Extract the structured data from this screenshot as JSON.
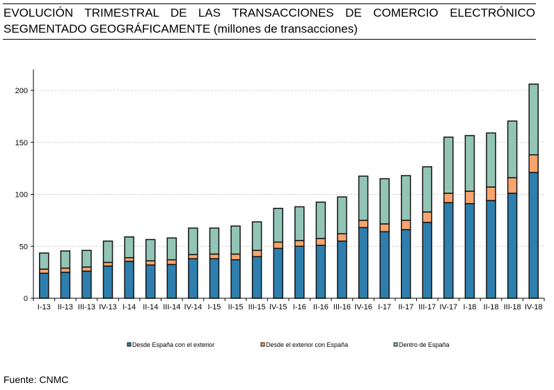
{
  "header": {
    "title_line1": "EVOLUCIÓN TRIMESTRAL DE LAS TRANSACCIONES DE COMERCIO ELECTRÓNICO",
    "title_line2": "SEGMENTADO GEOGRÁFICAMENTE (millones de transacciones)"
  },
  "footer": {
    "source": "Fuente: CNMC"
  },
  "chart_data": {
    "type": "bar",
    "stacked": true,
    "title": "EVOLUCIÓN TRIMESTRAL DE LAS TRANSACCIONES DE COMERCIO ELECTRÓNICO SEGMENTADO GEOGRÁFICAMENTE (millones de transacciones)",
    "xlabel": "",
    "ylabel": "",
    "ylim": [
      0,
      220
    ],
    "yticks": [
      0,
      50,
      100,
      150,
      200
    ],
    "grid": true,
    "legend_position": "bottom",
    "categories": [
      "I-13",
      "II-13",
      "III-13",
      "IV-13",
      "I-14",
      "II-14",
      "III-14",
      "IV-14",
      "I-15",
      "II-15",
      "III-15",
      "IV-15",
      "I-16",
      "II-16",
      "III-16",
      "IV-16",
      "I-17",
      "II-17",
      "III-17",
      "IV-17",
      "I-18",
      "II-18",
      "III-18",
      "IV-18"
    ],
    "series": [
      {
        "name": "Desde España con el exterior",
        "color": "#2e7fae",
        "values": [
          24,
          25,
          26,
          31,
          35.5,
          32,
          32.5,
          38,
          38,
          37,
          40,
          48,
          50,
          51,
          55,
          68,
          64,
          66,
          73,
          92,
          91,
          94,
          101,
          121
        ]
      },
      {
        "name": "Desde el exterior con España",
        "color": "#f9a46e",
        "values": [
          4,
          4,
          4,
          3.5,
          3.5,
          4,
          4.5,
          4,
          4.5,
          5.5,
          6,
          6,
          5.5,
          6.5,
          7,
          7,
          7.5,
          9,
          10,
          9,
          12,
          13,
          15,
          17
        ]
      },
      {
        "name": "Dentro de España",
        "color": "#92c5b5",
        "values": [
          15.5,
          16.5,
          16,
          20.5,
          20,
          20.5,
          21,
          25.5,
          25,
          27,
          27.5,
          32.5,
          32.5,
          35,
          35.5,
          42.5,
          43.5,
          43,
          43.5,
          54,
          53.5,
          52,
          54.5,
          68
        ]
      }
    ]
  }
}
